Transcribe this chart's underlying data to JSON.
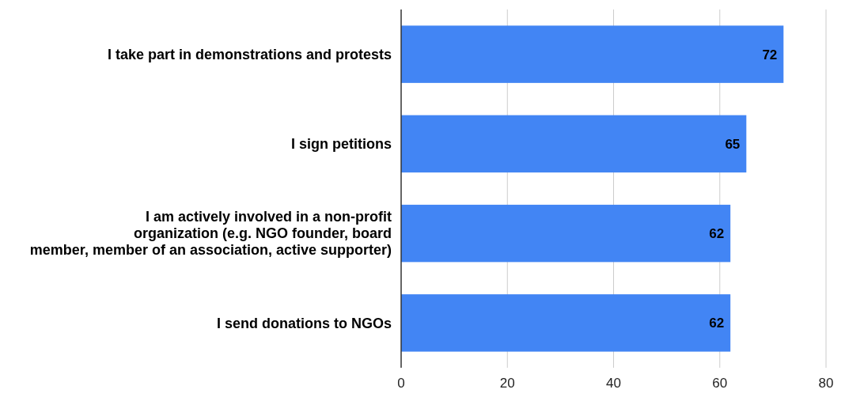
{
  "chart_data": {
    "type": "bar",
    "orientation": "horizontal",
    "categories": [
      "I take part in demonstrations and protests",
      "I sign petitions",
      "I am actively involved in a non-profit organization (e.g. NGO founder, board member, member of an association, active supporter)",
      "I send donations to NGOs"
    ],
    "values": [
      72,
      65,
      62,
      62
    ],
    "color": "#4285f4",
    "xlim": [
      0,
      80
    ],
    "xticks": [
      0,
      20,
      40,
      60,
      80
    ],
    "grid": "x",
    "data_labels": true
  }
}
